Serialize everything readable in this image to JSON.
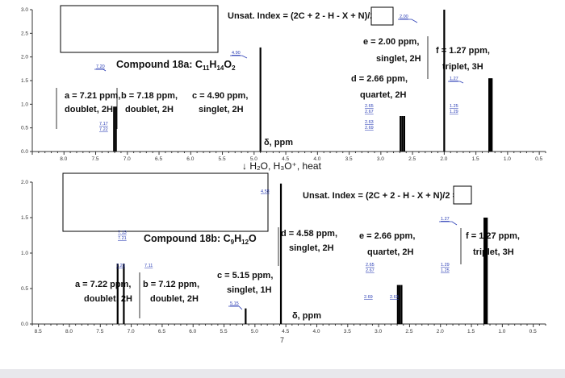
{
  "chart_data": [
    {
      "type": "line",
      "title": "Compound 18a: C11H14O2",
      "formula": {
        "prefix": "Compound 18a: C",
        "n1": "11",
        "h": "H",
        "n2": "14",
        "o": "O",
        "n3": "2"
      },
      "unsat_label": "Unsat. Index = (2C + 2 - H - X + N)/2 =",
      "xlabel": "δ, ppm",
      "xlim": [
        8.5,
        0.4
      ],
      "ylim": [
        0.0,
        3.0
      ],
      "xticks": [
        "8.0",
        "7.5",
        "7.0",
        "6.5",
        "6.0",
        "5.5",
        "5.0",
        "4.5",
        "4.0",
        "3.5",
        "3.0",
        "2.5",
        "2.0",
        "1.5",
        "1.0",
        "0.5"
      ],
      "yticks": [
        "0.0",
        "0.5",
        "1.0",
        "1.5",
        "2.0",
        "2.5",
        "3.0"
      ],
      "peaks": [
        {
          "x": 7.21,
          "y": 0.95
        },
        {
          "x": 7.18,
          "y": 0.95
        },
        {
          "x": 4.9,
          "y": 2.2
        },
        {
          "x": 2.69,
          "y": 0.75
        },
        {
          "x": 2.66,
          "y": 0.75
        },
        {
          "x": 2.63,
          "y": 0.75
        },
        {
          "x": 2.0,
          "y": 3.0
        },
        {
          "x": 1.29,
          "y": 1.55
        },
        {
          "x": 1.27,
          "y": 1.55
        },
        {
          "x": 1.25,
          "y": 1.55
        }
      ],
      "integral_labels": [
        "7.20",
        "7.17",
        "7.22",
        "4.90",
        "2.65",
        "2.67",
        "2.63",
        "2.69",
        "2.00",
        "1.27",
        "1.25",
        "1.29"
      ],
      "annotations": {
        "a": [
          "a = 7.21 ppm,",
          "doublet, 2H"
        ],
        "b": [
          "b = 7.18 ppm,",
          "doublet, 2H"
        ],
        "c": [
          "c = 4.90 ppm,",
          "singlet, 2H"
        ],
        "d": [
          "d = 2.66 ppm,",
          "quartet, 2H"
        ],
        "e": [
          "e = 2.00 ppm,",
          "singlet, 2H"
        ],
        "f": [
          "f = 1.27 ppm,",
          "triplet, 3H"
        ]
      }
    },
    {
      "type": "line",
      "title": "Compound 18b: C9H12O",
      "formula": {
        "prefix": "Compound 18b: C",
        "n1": "9",
        "h": "H",
        "n2": "12",
        "o": "O",
        "n3": ""
      },
      "unsat_label": "Unsat. Index = (2C + 2 - H - X + N)/2 =",
      "xlabel": "δ, ppm",
      "xlim": [
        8.6,
        0.3
      ],
      "ylim": [
        0.0,
        2.0
      ],
      "xticks": [
        "8.5",
        "8.0",
        "7.5",
        "7.0",
        "6.5",
        "6.0",
        "5.5",
        "5.0",
        "4.5",
        "4.0",
        "3.5",
        "3.0",
        "2.5",
        "2.0",
        "1.5",
        "1.0",
        "0.5"
      ],
      "yticks": [
        "0.0",
        "0.5",
        "1.0",
        "1.5",
        "2.0"
      ],
      "peaks": [
        {
          "x": 7.22,
          "y": 0.85
        },
        {
          "x": 7.12,
          "y": 0.85
        },
        {
          "x": 5.15,
          "y": 0.22
        },
        {
          "x": 4.58,
          "y": 1.98
        },
        {
          "x": 2.69,
          "y": 0.55
        },
        {
          "x": 2.66,
          "y": 0.55
        },
        {
          "x": 2.63,
          "y": 0.55
        },
        {
          "x": 1.29,
          "y": 1.5
        },
        {
          "x": 1.27,
          "y": 1.5
        },
        {
          "x": 1.25,
          "y": 1.5
        }
      ],
      "integral_labels": [
        "7.13",
        "7.21",
        "7.23",
        "7.11",
        "5.15",
        "4.58",
        "2.65",
        "2.67",
        "2.69",
        "2.63",
        "1.27",
        "1.29",
        "1.25"
      ],
      "annotations": {
        "a": [
          "a = 7.22 ppm,",
          "doublet, 2H"
        ],
        "b": [
          "b = 7.12 ppm,",
          "doublet, 2H"
        ],
        "c": [
          "c = 5.15 ppm,",
          "singlet, 1H"
        ],
        "d": [
          "d = 4.58 ppm,",
          "singlet, 2H"
        ],
        "e": [
          "e = 2.66 ppm,",
          "quartet, 2H"
        ],
        "f": [
          "f = 1.27 ppm,",
          "triplet, 3H"
        ]
      }
    }
  ],
  "reaction": {
    "arrow": "↓",
    "text": "H₂O, H₃O⁺, heat"
  },
  "footer_number": "7"
}
